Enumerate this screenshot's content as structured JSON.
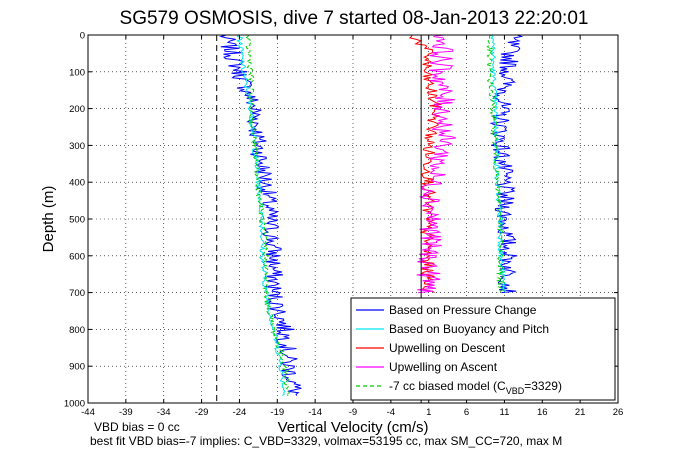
{
  "chart_data": {
    "type": "line",
    "title": "SG579 OSMOSIS, dive 7 started 08-Jan-2013 22:20:01",
    "xlabel": "Vertical Velocity (cm/s)",
    "ylabel": "Depth (m)",
    "xlim": [
      -44,
      26
    ],
    "ylim": [
      0,
      1000
    ],
    "y_reversed": true,
    "grid": "dotted",
    "xticks": [
      "-44",
      "-39",
      "-34",
      "-29",
      "-24",
      "-19",
      "-14",
      "-9",
      "-4",
      "1",
      "6",
      "11",
      "16",
      "21",
      "26"
    ],
    "yticks": [
      "0",
      "100",
      "200",
      "300",
      "400",
      "500",
      "600",
      "700",
      "800",
      "900",
      "1000"
    ],
    "legend_position": "bottom-right",
    "reference_lines": [
      {
        "x": 0,
        "style": "solid",
        "color": "#000000"
      },
      {
        "x": -27,
        "style": "dashed",
        "color": "#000000"
      }
    ],
    "series": [
      {
        "name": "Based on Pressure Change",
        "color": "#0000ff",
        "noise": 1.3,
        "descent": [
          [
            0,
            -26
          ],
          [
            100,
            -24
          ],
          [
            200,
            -22
          ],
          [
            300,
            -21.5
          ],
          [
            400,
            -20.5
          ],
          [
            500,
            -20
          ],
          [
            600,
            -19.5
          ],
          [
            700,
            -19.5
          ],
          [
            800,
            -18
          ],
          [
            900,
            -17.5
          ],
          [
            980,
            -16.5
          ]
        ],
        "ascent": [
          [
            0,
            12
          ],
          [
            100,
            11.5
          ],
          [
            200,
            10.5
          ],
          [
            300,
            10.5
          ],
          [
            400,
            11
          ],
          [
            500,
            11
          ],
          [
            600,
            11.5
          ],
          [
            700,
            11.5
          ]
        ]
      },
      {
        "name": "Based on Buoyancy and Pitch",
        "color": "#00e5ee",
        "noise": 0.35,
        "descent": [
          [
            0,
            -24
          ],
          [
            100,
            -23.5
          ],
          [
            200,
            -22.5
          ],
          [
            300,
            -22
          ],
          [
            400,
            -21.5
          ],
          [
            500,
            -21
          ],
          [
            600,
            -21
          ],
          [
            700,
            -20.5
          ],
          [
            800,
            -19.5
          ],
          [
            900,
            -18.5
          ],
          [
            980,
            -18
          ]
        ],
        "ascent": [
          [
            0,
            9.5
          ],
          [
            100,
            9.5
          ],
          [
            200,
            9.8
          ],
          [
            300,
            10
          ],
          [
            400,
            10
          ],
          [
            500,
            10.5
          ],
          [
            600,
            10.5
          ],
          [
            700,
            11
          ]
        ]
      },
      {
        "name": "Upwelling on Descent",
        "color": "#ff0000",
        "noise": 0.9,
        "descent": [
          [
            0,
            -1
          ],
          [
            50,
            1
          ],
          [
            100,
            0.5
          ],
          [
            200,
            2
          ],
          [
            300,
            1
          ],
          [
            400,
            1
          ],
          [
            500,
            0.8
          ],
          [
            600,
            0.8
          ],
          [
            700,
            1
          ]
        ]
      },
      {
        "name": "Upwelling on Ascent",
        "color": "#ff00ff",
        "noise": 1.6,
        "descent": [
          [
            0,
            3
          ],
          [
            100,
            2.5
          ],
          [
            200,
            3
          ],
          [
            300,
            3
          ],
          [
            400,
            1.5
          ],
          [
            500,
            1.5
          ],
          [
            600,
            1
          ],
          [
            700,
            1
          ]
        ]
      },
      {
        "name": "-7 cc biased model (C",
        "name_sub": "VBD",
        "name_suffix": "=3329)",
        "color": "#00cc00",
        "dashed": true,
        "noise": 0.4,
        "descent": [
          [
            0,
            -23
          ],
          [
            100,
            -22.5
          ],
          [
            200,
            -22.5
          ],
          [
            300,
            -22
          ],
          [
            400,
            -21.5
          ],
          [
            500,
            -21
          ],
          [
            600,
            -20.5
          ],
          [
            700,
            -20.5
          ],
          [
            800,
            -19.5
          ],
          [
            900,
            -18
          ],
          [
            980,
            -17.5
          ]
        ],
        "ascent": [
          [
            0,
            9
          ],
          [
            100,
            9
          ],
          [
            200,
            9.5
          ],
          [
            300,
            9.8
          ],
          [
            400,
            10
          ],
          [
            500,
            10.5
          ],
          [
            600,
            10.5
          ],
          [
            700,
            10.5
          ]
        ]
      }
    ],
    "annotations": [
      "VBD bias = 0 cc",
      "best fit VBD bias=-7 implies: C_VBD=3329, volmax=53195 cc, max SM_CC=720, max M"
    ]
  }
}
